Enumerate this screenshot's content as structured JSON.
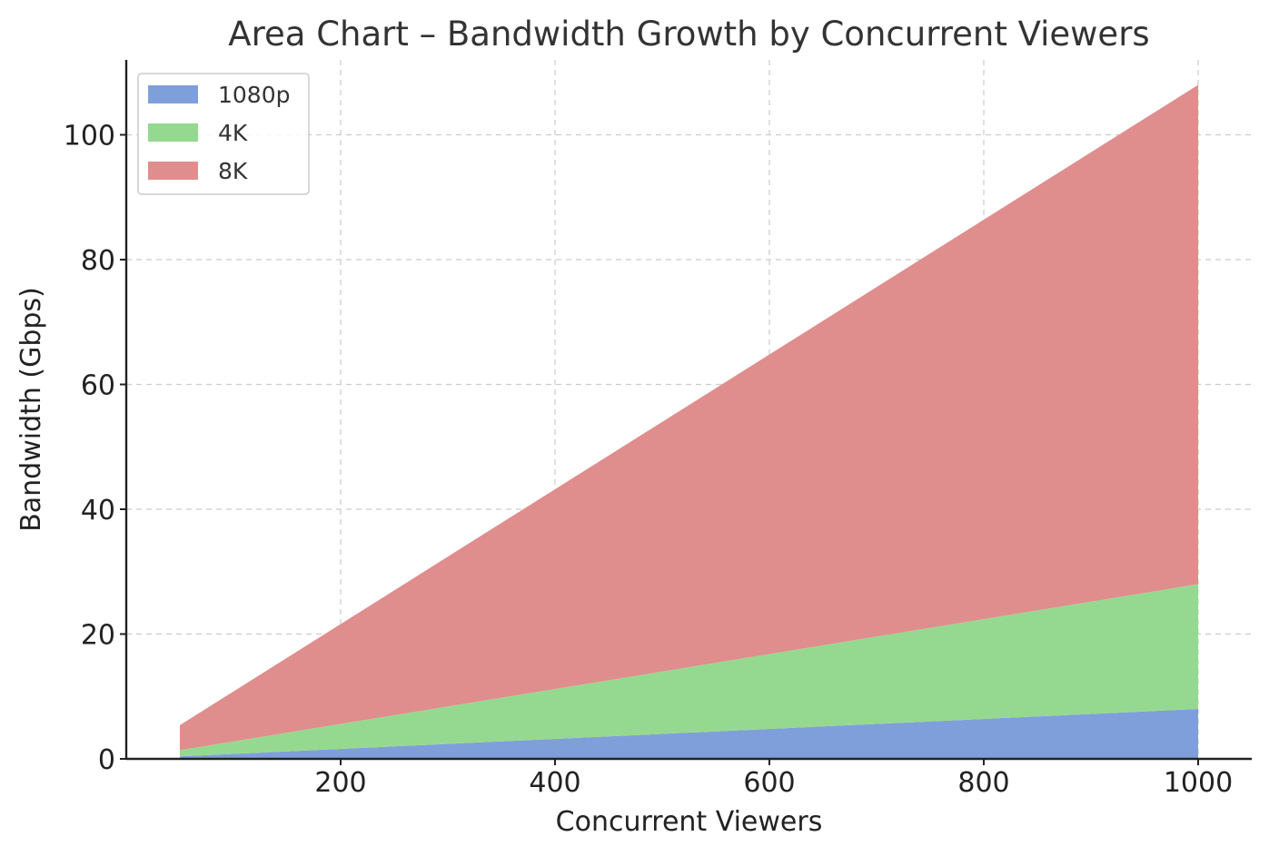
{
  "chart_data": {
    "type": "area",
    "stacked": true,
    "title": "Area Chart – Bandwidth Growth by Concurrent Viewers",
    "xlabel": "Concurrent Viewers",
    "ylabel": "Bandwidth (Gbps)",
    "xlim": [
      0,
      1050
    ],
    "ylim": [
      0,
      112
    ],
    "xticks": [
      200,
      400,
      600,
      800,
      1000
    ],
    "yticks": [
      0,
      20,
      40,
      60,
      80,
      100
    ],
    "x": [
      50,
      200,
      400,
      600,
      800,
      1000
    ],
    "series": [
      {
        "name": "1080p",
        "color": "#7f9fdb",
        "values": [
          0.4,
          1.6,
          3.2,
          4.8,
          6.4,
          8.0
        ]
      },
      {
        "name": "4K",
        "color": "#95d990",
        "values": [
          1.0,
          4.0,
          8.0,
          12.0,
          16.0,
          20.0
        ]
      },
      {
        "name": "8K",
        "color": "#e08d8d",
        "values": [
          4.0,
          16.0,
          32.0,
          48.0,
          64.0,
          80.0
        ]
      }
    ],
    "grid": true,
    "legend_position": "top-left"
  }
}
